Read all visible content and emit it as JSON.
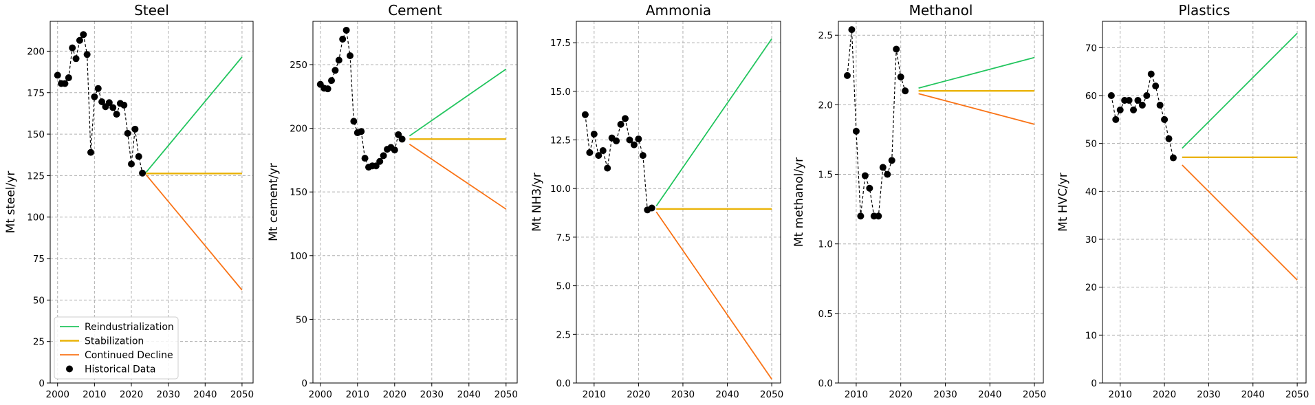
{
  "legend": {
    "items": [
      {
        "label": "Reindustrialization",
        "color": "#22c55e",
        "kind": "line"
      },
      {
        "label": "Stabilization",
        "color": "#eab308",
        "kind": "line"
      },
      {
        "label": "Continued Decline",
        "color": "#f97316",
        "kind": "line"
      },
      {
        "label": "Historical Data",
        "color": "#000000",
        "kind": "marker"
      }
    ]
  },
  "chart_data": [
    {
      "type": "line",
      "title": "Steel",
      "ylabel": "Mt steel/yr",
      "xlim": [
        1998,
        2053
      ],
      "ylim": [
        0,
        218
      ],
      "xticks": [
        2000,
        2010,
        2020,
        2030,
        2040,
        2050
      ],
      "yticks": [
        0,
        25,
        50,
        75,
        100,
        125,
        150,
        175,
        200
      ],
      "historical": {
        "x": [
          2000,
          2001,
          2002,
          2003,
          2004,
          2005,
          2006,
          2007,
          2008,
          2009,
          2010,
          2011,
          2012,
          2013,
          2014,
          2015,
          2016,
          2017,
          2018,
          2019,
          2020,
          2021,
          2022,
          2023
        ],
        "y": [
          185.5,
          180.5,
          180.5,
          184,
          202,
          195.5,
          206.5,
          210,
          198,
          139,
          172.5,
          177.5,
          169.5,
          166.5,
          169,
          166,
          162,
          168.5,
          167.5,
          150.5,
          132,
          153,
          136.5,
          126.5
        ]
      },
      "scenarios": [
        {
          "name": "Reindustrialization",
          "x": [
            2024,
            2050
          ],
          "y": [
            127,
            196.5
          ]
        },
        {
          "name": "Stabilization",
          "x": [
            2024,
            2050
          ],
          "y": [
            126.3,
            126.3
          ]
        },
        {
          "name": "Continued Decline",
          "x": [
            2024,
            2050
          ],
          "y": [
            125.5,
            56
          ]
        }
      ],
      "legend_position": "lower left"
    },
    {
      "type": "line",
      "title": "Cement",
      "ylabel": "Mt cement/yr",
      "xlim": [
        1998,
        2053
      ],
      "ylim": [
        0,
        284
      ],
      "xticks": [
        2000,
        2010,
        2020,
        2030,
        2040,
        2050
      ],
      "yticks": [
        0,
        50,
        100,
        150,
        200,
        250
      ],
      "historical": {
        "x": [
          2000,
          2001,
          2002,
          2003,
          2004,
          2005,
          2006,
          2007,
          2008,
          2009,
          2010,
          2011,
          2012,
          2013,
          2014,
          2015,
          2016,
          2017,
          2018,
          2019,
          2020,
          2021,
          2022
        ],
        "y": [
          234.5,
          231.5,
          231,
          237.5,
          245.5,
          253.5,
          270,
          277,
          257,
          205.5,
          196.5,
          197.5,
          176.5,
          169.5,
          170.5,
          170.5,
          174,
          178.5,
          183.5,
          185,
          183,
          195,
          191.5
        ]
      },
      "scenarios": [
        {
          "name": "Reindustrialization",
          "x": [
            2024,
            2050
          ],
          "y": [
            194,
            246.5
          ]
        },
        {
          "name": "Stabilization",
          "x": [
            2024,
            2050
          ],
          "y": [
            191.5,
            191.5
          ]
        },
        {
          "name": "Continued Decline",
          "x": [
            2024,
            2050
          ],
          "y": [
            187.5,
            136.5
          ]
        }
      ]
    },
    {
      "type": "line",
      "title": "Ammonia",
      "ylabel": "Mt NH3/yr",
      "xlim": [
        2006,
        2052
      ],
      "ylim": [
        0,
        18.6
      ],
      "xticks": [
        2010,
        2020,
        2030,
        2040,
        2050
      ],
      "yticks": [
        0.0,
        2.5,
        5.0,
        7.5,
        10.0,
        12.5,
        15.0,
        17.5
      ],
      "ytick_labels": [
        "0.0",
        "2.5",
        "5.0",
        "7.5",
        "10.0",
        "12.5",
        "15.0",
        "17.5"
      ],
      "historical": {
        "x": [
          2008,
          2009,
          2010,
          2011,
          2012,
          2013,
          2014,
          2015,
          2016,
          2017,
          2018,
          2019,
          2020,
          2021,
          2022,
          2023
        ],
        "y": [
          13.8,
          11.85,
          12.8,
          11.7,
          11.95,
          11.05,
          12.6,
          12.45,
          13.3,
          13.6,
          12.5,
          12.25,
          12.55,
          11.7,
          8.9,
          9.0
        ]
      },
      "scenarios": [
        {
          "name": "Reindustrialization",
          "x": [
            2024,
            2050
          ],
          "y": [
            9.1,
            17.7
          ]
        },
        {
          "name": "Stabilization",
          "x": [
            2024,
            2050
          ],
          "y": [
            8.95,
            8.95
          ]
        },
        {
          "name": "Continued Decline",
          "x": [
            2024,
            2050
          ],
          "y": [
            8.8,
            0.2
          ]
        }
      ]
    },
    {
      "type": "line",
      "title": "Methanol",
      "ylabel": "Mt methanol/yr",
      "xlim": [
        2006,
        2052
      ],
      "ylim": [
        0,
        2.6
      ],
      "xticks": [
        2010,
        2020,
        2030,
        2040,
        2050
      ],
      "yticks": [
        0.0,
        0.5,
        1.0,
        1.5,
        2.0,
        2.5
      ],
      "ytick_labels": [
        "0.0",
        "0.5",
        "1.0",
        "1.5",
        "2.0",
        "2.5"
      ],
      "historical": {
        "x": [
          2008,
          2009,
          2010,
          2011,
          2012,
          2013,
          2014,
          2015,
          2016,
          2017,
          2018,
          2019,
          2020,
          2021
        ],
        "y": [
          2.21,
          2.54,
          1.81,
          1.2,
          1.49,
          1.4,
          1.2,
          1.2,
          1.55,
          1.5,
          1.6,
          2.4,
          2.2,
          2.1
        ]
      },
      "scenarios": [
        {
          "name": "Reindustrialization",
          "x": [
            2024,
            2050
          ],
          "y": [
            2.12,
            2.34
          ]
        },
        {
          "name": "Stabilization",
          "x": [
            2024,
            2050
          ],
          "y": [
            2.1,
            2.1
          ]
        },
        {
          "name": "Continued Decline",
          "x": [
            2024,
            2050
          ],
          "y": [
            2.08,
            1.86
          ]
        }
      ]
    },
    {
      "type": "line",
      "title": "Plastics",
      "ylabel": "Mt HVC/yr",
      "xlim": [
        2006,
        2052
      ],
      "ylim": [
        0,
        75.5
      ],
      "xticks": [
        2010,
        2020,
        2030,
        2040,
        2050
      ],
      "yticks": [
        0,
        10,
        20,
        30,
        40,
        50,
        60,
        70
      ],
      "historical": {
        "x": [
          2008,
          2009,
          2010,
          2011,
          2012,
          2013,
          2014,
          2015,
          2016,
          2017,
          2018,
          2019,
          2020,
          2021,
          2022
        ],
        "y": [
          60,
          55,
          57,
          59,
          59,
          57,
          59,
          58,
          60,
          64.5,
          62,
          58,
          55,
          51,
          47
        ]
      },
      "scenarios": [
        {
          "name": "Reindustrialization",
          "x": [
            2024,
            2050
          ],
          "y": [
            49,
            73
          ]
        },
        {
          "name": "Stabilization",
          "x": [
            2024,
            2050
          ],
          "y": [
            47.1,
            47.1
          ]
        },
        {
          "name": "Continued Decline",
          "x": [
            2024,
            2050
          ],
          "y": [
            45.5,
            21.5
          ]
        }
      ]
    }
  ]
}
